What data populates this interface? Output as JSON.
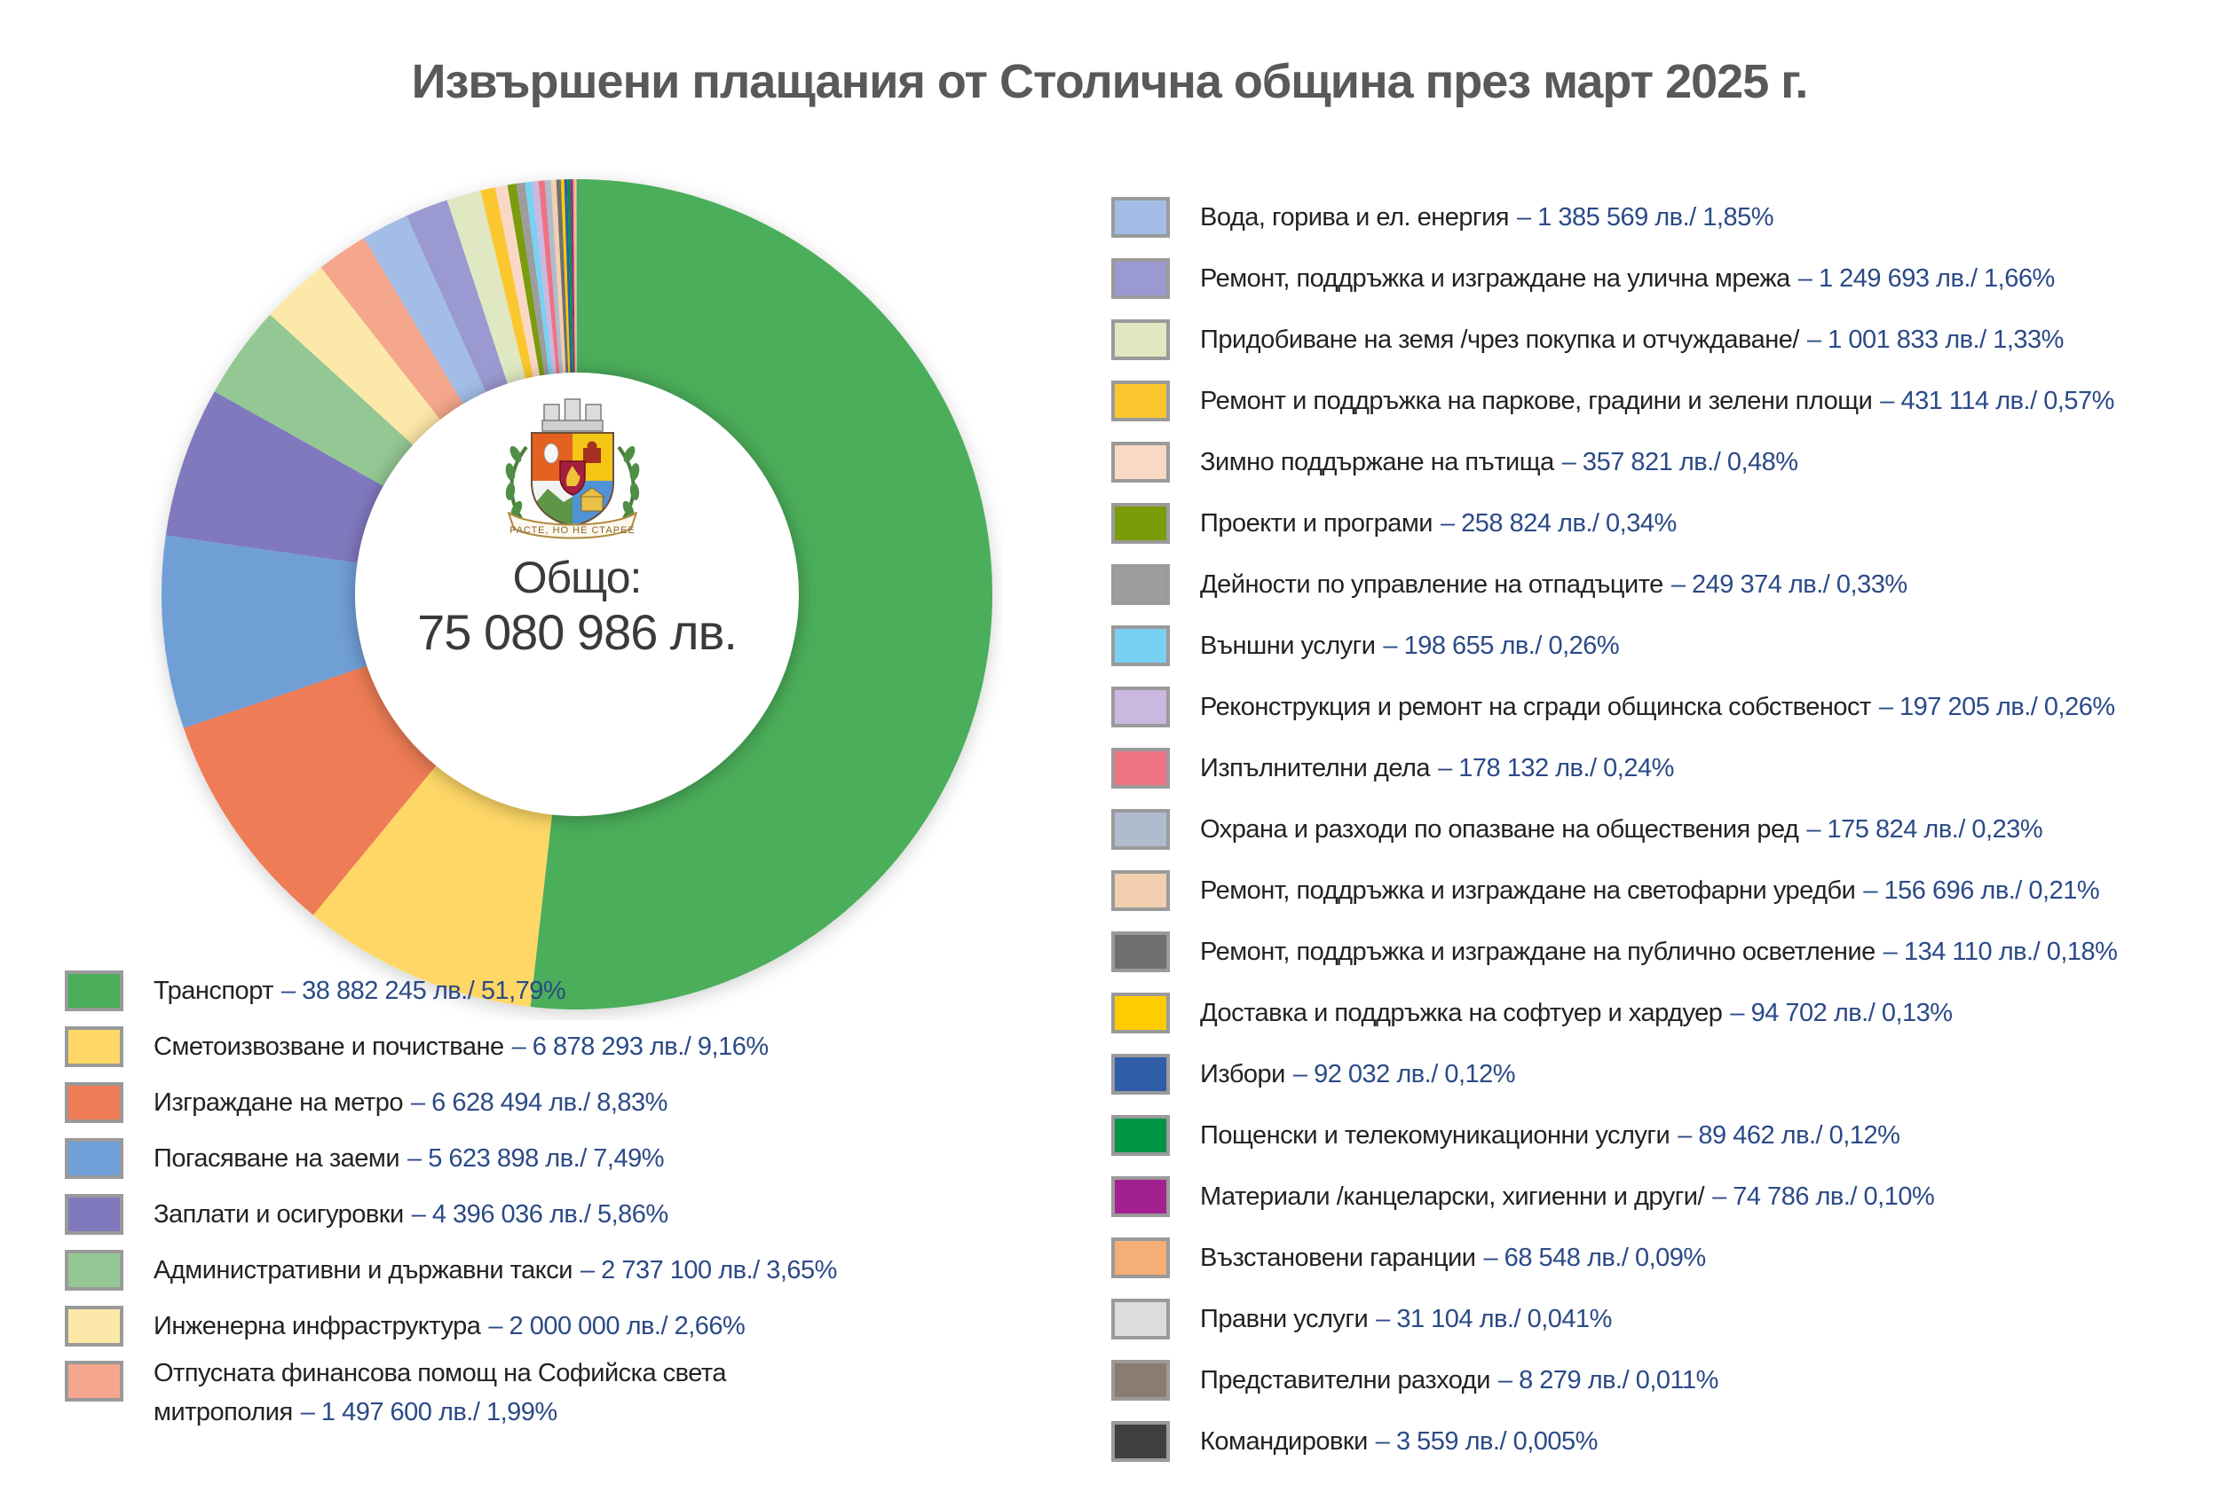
{
  "title": "Извършени плащания от Столична община през март 2025 г.",
  "coat_of_arms": {
    "motto": "РАСТЕ, НО НЕ СТАРЕЕ"
  },
  "legend": {
    "left_count": 8
  },
  "colors": {
    "value_text": "#2b4a87",
    "label_text": "#222222",
    "title_text": "#58595b"
  },
  "chart_data": {
    "type": "pie",
    "subtype": "donut",
    "title": "Извършени плащания от Столична община през март 2025 г.",
    "total": {
      "label": "Общо:",
      "value_text": "75 080 986 лв.",
      "value": 75080986
    },
    "unit": "лв.",
    "legend_position": "bottom-left and right column",
    "items": [
      {
        "label": "Транспорт",
        "value": 38882245,
        "display": "– 38 882 245 лв./ 51,79%",
        "color": "#4bae5a"
      },
      {
        "label": "Сметоизвозване и почистване",
        "value": 6878293,
        "display": "– 6 878 293 лв./ 9,16%",
        "color": "#fed766"
      },
      {
        "label": "Изграждане на метро",
        "value": 6628494,
        "display": "– 6 628 494 лв./ 8,83%",
        "color": "#ee7c56"
      },
      {
        "label": "Погасяване на заеми",
        "value": 5623898,
        "display": "– 5 623 898 лв./ 7,49%",
        "color": "#6f9fd6"
      },
      {
        "label": "Заплати и осигуровки",
        "value": 4396036,
        "display": "– 4 396 036 лв./ 5,86%",
        "color": "#8179be"
      },
      {
        "label": "Административни и държавни такси",
        "value": 2737100,
        "display": "– 2 737 100 лв./ 3,65%",
        "color": "#93c793"
      },
      {
        "label": "Инженерна инфраструктура",
        "value": 2000000,
        "display": "– 2 000 000 лв./ 2,66%",
        "color": "#fce8a8"
      },
      {
        "label": "Отпусната финансова помощ на Софийска света\nмитрополия",
        "value": 1497600,
        "display": "– 1 497 600 лв./ 1,99%",
        "color": "#f4a78c"
      },
      {
        "label": "Вода, горива и ел. енергия",
        "value": 1385569,
        "display": "– 1 385 569 лв./ 1,85%",
        "color": "#a3bde6"
      },
      {
        "label": "Ремонт, поддръжка и изграждане на улична мрежа",
        "value": 1249693,
        "display": "– 1 249 693 лв./ 1,66%",
        "color": "#9a99d1"
      },
      {
        "label": "Придобиване на земя /чрез покупка и отчуждаване/",
        "value": 1001833,
        "display": "– 1 001 833 лв./ 1,33%",
        "color": "#dfe8c0"
      },
      {
        "label": "Ремонт и поддръжка на паркове, градини и зелени площи",
        "value": 431114,
        "display": "– 431 114 лв./ 0,57%",
        "color": "#fcc72e"
      },
      {
        "label": "Зимно поддържане на пътища",
        "value": 357821,
        "display": "– 357 821 лв./ 0,48%",
        "color": "#fad8c6"
      },
      {
        "label": "Проекти и програми",
        "value": 258824,
        "display": "– 258 824 лв./ 0,34%",
        "color": "#7a9c08"
      },
      {
        "label": "Дейности по управление на отпадъците",
        "value": 249374,
        "display": "– 249 374 лв./ 0,33%",
        "color": "#9d9d9d"
      },
      {
        "label": "Външни услуги",
        "value": 198655,
        "display": "– 198 655 лв./ 0,26%",
        "color": "#79d1f2"
      },
      {
        "label": "Реконструкция и ремонт на сгради общинска собственост",
        "value": 197205,
        "display": "– 197 205 лв./ 0,26%",
        "color": "#cbb8e0"
      },
      {
        "label": "Изпълнителни дела",
        "value": 178132,
        "display": "– 178 132 лв./ 0,24%",
        "color": "#ef7283"
      },
      {
        "label": "Охрана и разходи по опазване на обществения ред",
        "value": 175824,
        "display": "– 175 824 лв./ 0,23%",
        "color": "#aebcce"
      },
      {
        "label": "Ремонт, поддръжка и изграждане на светофарни уредби",
        "value": 156696,
        "display": "– 156 696 лв./ 0,21%",
        "color": "#f2cfae"
      },
      {
        "label": "Ремонт, поддръжка и изграждане на публично осветление",
        "value": 134110,
        "display": "– 134 110 лв./ 0,18%",
        "color": "#6f6f6f"
      },
      {
        "label": "Доставка и поддръжка на софтуер и хардуер",
        "value": 94702,
        "display": "– 94 702 лв./ 0,13%",
        "color": "#ffcc00"
      },
      {
        "label": "Избори",
        "value": 92032,
        "display": "– 92 032 лв./ 0,12%",
        "color": "#2f5da8"
      },
      {
        "label": "Пощенски и телекомуникационни услуги",
        "value": 89462,
        "display": "– 89 462 лв./ 0,12%",
        "color": "#009444"
      },
      {
        "label": "Материали /канцеларски, хигиенни и други/",
        "value": 74786,
        "display": "– 74 786 лв./ 0,10%",
        "color": "#a3218e"
      },
      {
        "label": "Възстановени гаранции",
        "value": 68548,
        "display": "– 68 548 лв./ 0,09%",
        "color": "#f4ae76"
      },
      {
        "label": "Правни услуги",
        "value": 31104,
        "display": "– 31 104 лв./ 0,041%",
        "color": "#dcdcdc"
      },
      {
        "label": "Представителни разходи",
        "value": 8279,
        "display": "– 8 279 лв./ 0,011%",
        "color": "#8b7c72"
      },
      {
        "label": "Командировки",
        "value": 3559,
        "display": "– 3 559 лв./ 0,005%",
        "color": "#3f3f3f"
      }
    ]
  }
}
